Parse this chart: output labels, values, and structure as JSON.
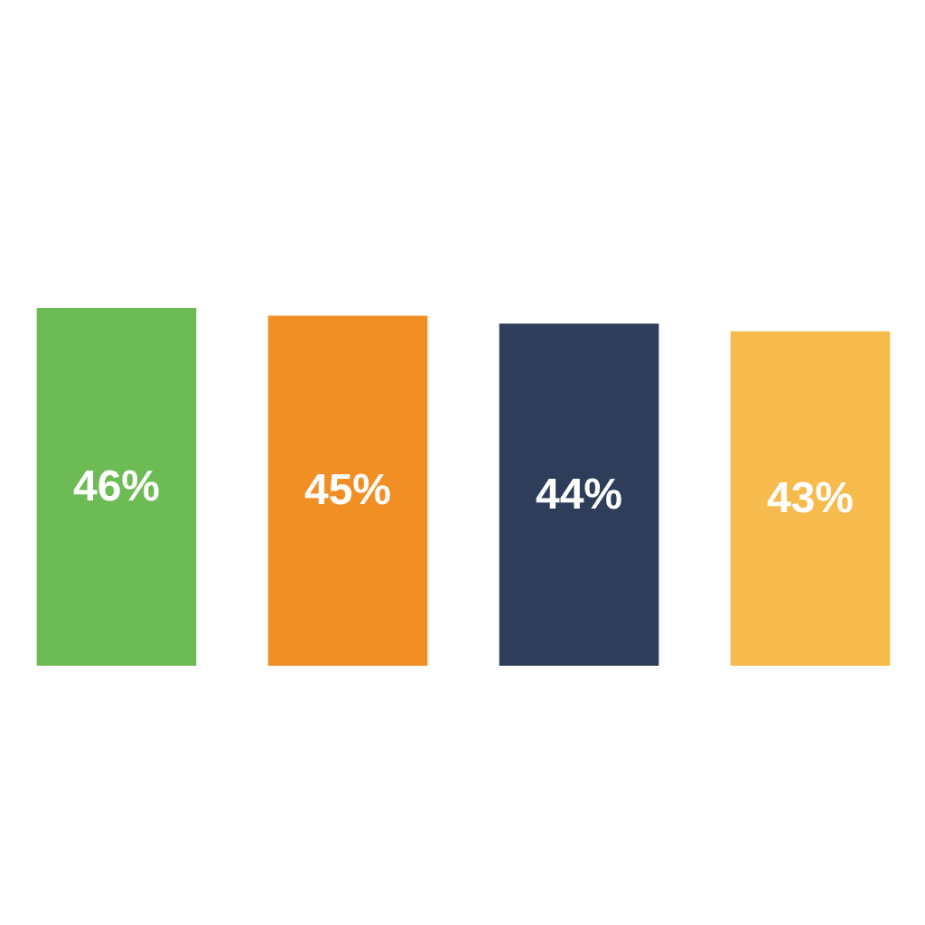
{
  "chart_data": {
    "type": "bar",
    "categories": [
      null,
      null,
      null,
      null
    ],
    "values": [
      46,
      45,
      44,
      43
    ],
    "colors": [
      "#6dbb55",
      "#f18f24",
      "#2d3d5a",
      "#f7bb4d"
    ],
    "value_labels": [
      "46%",
      "45%",
      "44%",
      "43%"
    ]
  }
}
